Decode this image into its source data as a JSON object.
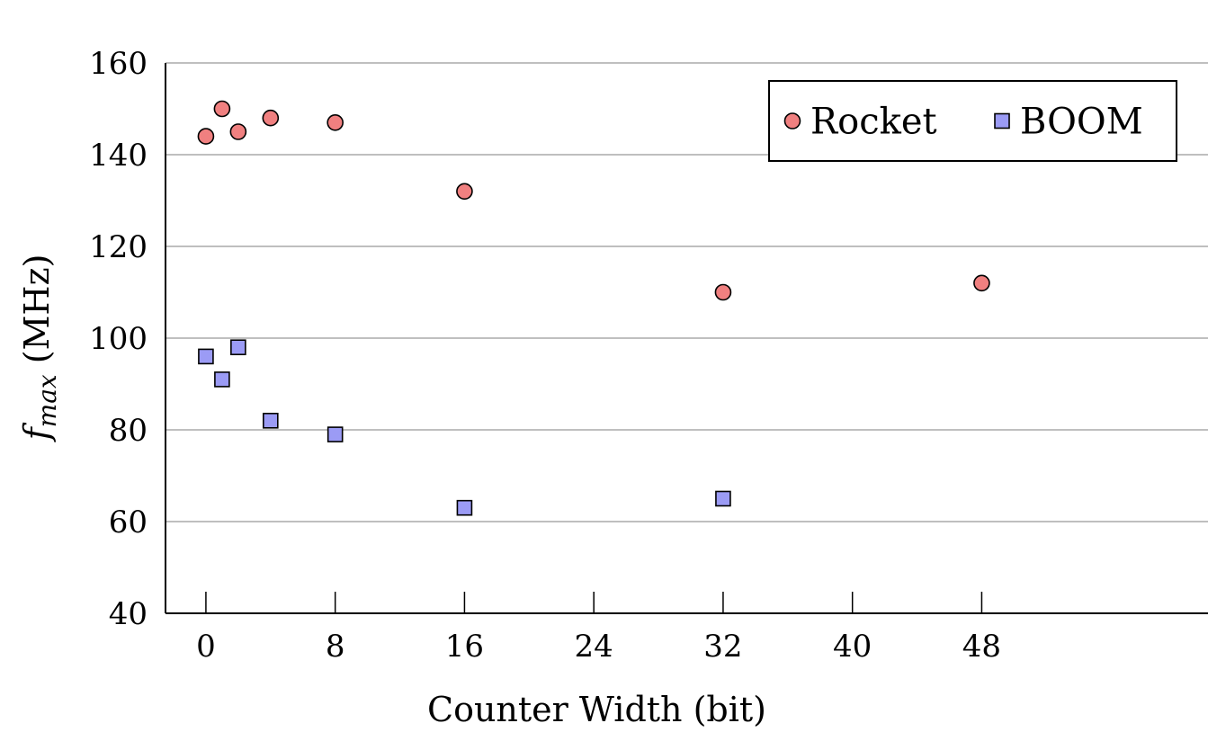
{
  "chart_data": {
    "type": "scatter",
    "xlabel": "Counter Width (bit)",
    "ylabel": "(MHz)",
    "ylabel_math": {
      "base": "f",
      "subscript": "max"
    },
    "xlim": [
      -2.5,
      62
    ],
    "ylim": [
      40,
      160
    ],
    "xticks": [
      0,
      8,
      16,
      24,
      32,
      40,
      48
    ],
    "yticks": [
      40,
      60,
      80,
      100,
      120,
      140,
      160
    ],
    "grid": "horizontal",
    "legend_position": "top-right",
    "series": [
      {
        "name": "Rocket",
        "marker": "circle",
        "color": "#f08080",
        "points": [
          {
            "x": 0,
            "y": 144
          },
          {
            "x": 1,
            "y": 150
          },
          {
            "x": 2,
            "y": 145
          },
          {
            "x": 4,
            "y": 148
          },
          {
            "x": 8,
            "y": 147
          },
          {
            "x": 16,
            "y": 132
          },
          {
            "x": 32,
            "y": 110
          },
          {
            "x": 48,
            "y": 112
          }
        ]
      },
      {
        "name": "BOOM",
        "marker": "square",
        "color": "#9b9bf5",
        "points": [
          {
            "x": 0,
            "y": 96
          },
          {
            "x": 1,
            "y": 91
          },
          {
            "x": 2,
            "y": 98
          },
          {
            "x": 4,
            "y": 82
          },
          {
            "x": 8,
            "y": 79
          },
          {
            "x": 16,
            "y": 63
          },
          {
            "x": 32,
            "y": 65
          }
        ]
      }
    ]
  }
}
